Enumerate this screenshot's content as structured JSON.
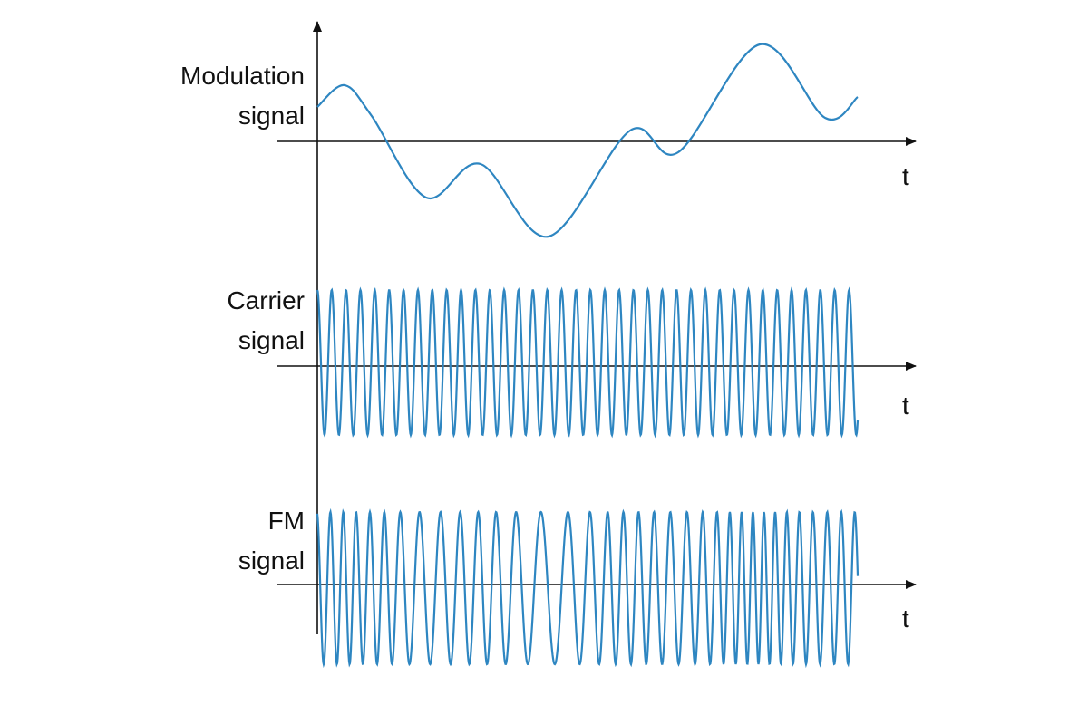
{
  "panels": [
    {
      "id": "modulation",
      "label_line1": "Modulation",
      "label_line2": "signal",
      "axis_label": "t"
    },
    {
      "id": "carrier",
      "label_line1": "Carrier",
      "label_line2": "signal",
      "axis_label": "t"
    },
    {
      "id": "fm",
      "label_line1": "FM",
      "label_line2": "signal",
      "axis_label": "t"
    }
  ],
  "colors": {
    "signal": "#2e86c1",
    "axis": "#111111",
    "background": "#ffffff"
  }
}
